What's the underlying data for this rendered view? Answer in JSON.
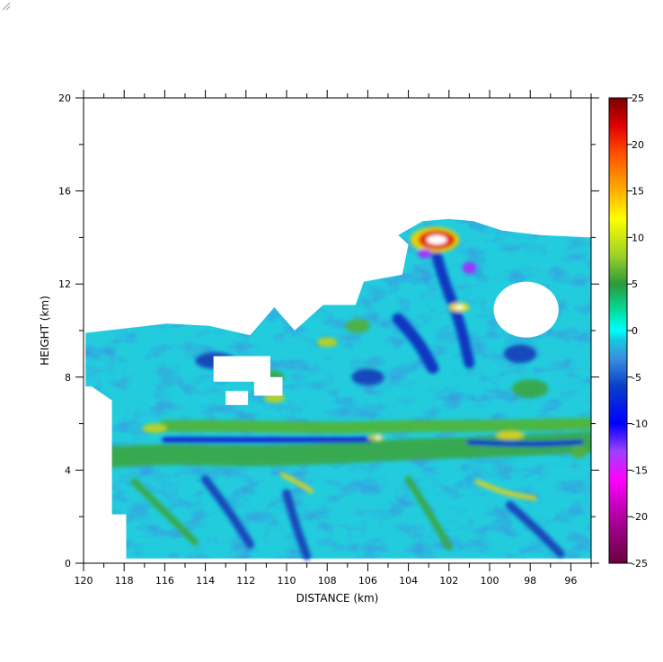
{
  "chart_data": {
    "type": "heatmap",
    "title": "",
    "xlabel": "DISTANCE (km)",
    "ylabel": "HEIGHT (km)",
    "xlim": [
      120,
      95
    ],
    "ylim": [
      0,
      20
    ],
    "x_ticks": [
      120,
      118,
      116,
      114,
      112,
      110,
      108,
      106,
      104,
      102,
      100,
      98,
      96
    ],
    "y_ticks": [
      0,
      4,
      8,
      12,
      16,
      20
    ],
    "colorbar": {
      "range": [
        -25,
        25
      ],
      "ticks": [
        25,
        20,
        15,
        10,
        5,
        0,
        -5,
        -10,
        -15,
        -20,
        -25
      ],
      "stops": [
        {
          "value": -25,
          "color": "#6a0040"
        },
        {
          "value": -20,
          "color": "#b000a0"
        },
        {
          "value": -16,
          "color": "#ff00ff"
        },
        {
          "value": -13,
          "color": "#a040ff"
        },
        {
          "value": -10,
          "color": "#0000ff"
        },
        {
          "value": -6,
          "color": "#0a3ec8"
        },
        {
          "value": -3,
          "color": "#3a8ee0"
        },
        {
          "value": -1,
          "color": "#16c8e0"
        },
        {
          "value": 0,
          "color": "#00ffff"
        },
        {
          "value": 2,
          "color": "#00e0a0"
        },
        {
          "value": 5,
          "color": "#2a9a3a"
        },
        {
          "value": 8,
          "color": "#9ad02a"
        },
        {
          "value": 12,
          "color": "#ffff00"
        },
        {
          "value": 15,
          "color": "#ffb000"
        },
        {
          "value": 19,
          "color": "#ff5000"
        },
        {
          "value": 22,
          "color": "#e00000"
        },
        {
          "value": 25,
          "color": "#7a0000"
        }
      ]
    },
    "field_regions": [
      {
        "name": "main-echo",
        "value": 0,
        "color": "#22ccdd",
        "points": [
          [
            119.9,
            0.8
          ],
          [
            119.9,
            9.9
          ],
          [
            115.9,
            10.3
          ],
          [
            113.8,
            10.2
          ],
          [
            111.8,
            9.8
          ],
          [
            110.6,
            11.0
          ],
          [
            109.6,
            10.0
          ],
          [
            108.2,
            11.1
          ],
          [
            106.6,
            11.1
          ],
          [
            106.2,
            12.1
          ],
          [
            104.3,
            12.4
          ],
          [
            104.0,
            13.7
          ],
          [
            104.5,
            14.1
          ],
          [
            103.3,
            14.7
          ],
          [
            102.0,
            14.8
          ],
          [
            100.8,
            14.7
          ],
          [
            99.4,
            14.3
          ],
          [
            97.5,
            14.1
          ],
          [
            95.0,
            14.0
          ],
          [
            95.0,
            0.2
          ],
          [
            118.3,
            0.2
          ],
          [
            118.4,
            0.9
          ]
        ]
      }
    ],
    "field_features": [
      {
        "kind": "band",
        "value": 6,
        "color": "#3aa84a",
        "width_km": 0.9,
        "points": [
          [
            119.8,
            4.5
          ],
          [
            116,
            4.7
          ],
          [
            112,
            4.6
          ],
          [
            108,
            4.7
          ],
          [
            104,
            4.9
          ],
          [
            100,
            5.0
          ],
          [
            95,
            5.2
          ]
        ]
      },
      {
        "kind": "band",
        "value": 6,
        "color": "#4fb53a",
        "width_km": 0.5,
        "points": [
          [
            116,
            5.9
          ],
          [
            112,
            5.9
          ],
          [
            108,
            5.8
          ],
          [
            104,
            5.9
          ],
          [
            100,
            5.9
          ],
          [
            95,
            6.0
          ]
        ]
      },
      {
        "kind": "band",
        "value": -9,
        "color": "#1020d0",
        "width_km": 0.25,
        "points": [
          [
            116,
            5.3
          ],
          [
            112,
            5.3
          ],
          [
            108.5,
            5.3
          ],
          [
            106,
            5.3
          ],
          [
            105.5,
            5.4
          ]
        ]
      },
      {
        "kind": "band",
        "value": -9,
        "color": "#1020d0",
        "width_km": 0.22,
        "points": [
          [
            101,
            5.2
          ],
          [
            98,
            5.1
          ],
          [
            95.5,
            5.2
          ]
        ]
      },
      {
        "kind": "band",
        "value": 11,
        "color": "#e0d020",
        "width_km": 0.2,
        "points": [
          [
            110.2,
            3.8
          ],
          [
            109.3,
            3.4
          ],
          [
            108.8,
            3.1
          ]
        ]
      },
      {
        "kind": "band",
        "value": 11,
        "color": "#e0d020",
        "width_km": 0.2,
        "points": [
          [
            100.6,
            3.5
          ],
          [
            99.2,
            3.0
          ],
          [
            97.8,
            2.8
          ]
        ]
      },
      {
        "kind": "band",
        "value": -6,
        "color": "#1840b8",
        "width_km": 0.35,
        "points": [
          [
            114,
            3.6
          ],
          [
            112.8,
            2.2
          ],
          [
            111.8,
            0.8
          ]
        ]
      },
      {
        "kind": "band",
        "value": -6,
        "color": "#1840b8",
        "width_km": 0.35,
        "points": [
          [
            110,
            3.0
          ],
          [
            109.5,
            1.5
          ],
          [
            109,
            0.3
          ]
        ]
      },
      {
        "kind": "band",
        "value": -6,
        "color": "#1840b8",
        "width_km": 0.35,
        "points": [
          [
            99,
            2.5
          ],
          [
            97.5,
            1.3
          ],
          [
            96.5,
            0.4
          ]
        ]
      },
      {
        "kind": "band",
        "value": 4,
        "color": "#3aa84a",
        "width_km": 0.3,
        "points": [
          [
            117.5,
            3.5
          ],
          [
            116,
            2.2
          ],
          [
            114.5,
            0.9
          ]
        ]
      },
      {
        "kind": "band",
        "value": 4,
        "color": "#3aa84a",
        "width_km": 0.3,
        "points": [
          [
            104,
            3.6
          ],
          [
            103,
            2.2
          ],
          [
            102,
            0.7
          ]
        ]
      },
      {
        "kind": "band",
        "value": -8,
        "color": "#1030c0",
        "width_km": 0.45,
        "points": [
          [
            102.8,
            13.8
          ],
          [
            102.2,
            12.0
          ],
          [
            101.5,
            10.5
          ],
          [
            101.0,
            8.6
          ]
        ]
      },
      {
        "kind": "band",
        "value": -8,
        "color": "#1030c0",
        "width_km": 0.5,
        "points": [
          [
            104.5,
            10.5
          ],
          [
            103.5,
            9.5
          ],
          [
            102.8,
            8.4
          ]
        ]
      },
      {
        "kind": "blob",
        "value": 14,
        "color": "#f0d000",
        "x": 102.7,
        "y": 13.9,
        "rx_km": 1.2,
        "ry_km": 0.55
      },
      {
        "kind": "blob",
        "value": 20,
        "color": "#e02000",
        "x": 102.6,
        "y": 13.9,
        "rx_km": 0.9,
        "ry_km": 0.4
      },
      {
        "kind": "blob",
        "value": 12,
        "color": "#f0e000",
        "x": 101.5,
        "y": 11.0,
        "rx_km": 0.5,
        "ry_km": 0.2
      },
      {
        "kind": "blob",
        "value": -13,
        "color": "#a030ff",
        "x": 101.0,
        "y": 12.7,
        "rx_km": 0.35,
        "ry_km": 0.25
      },
      {
        "kind": "blob",
        "value": -13,
        "color": "#a030ff",
        "x": 103.2,
        "y": 13.3,
        "rx_km": 0.35,
        "ry_km": 0.2
      },
      {
        "kind": "blob",
        "value": 9,
        "color": "#c0d020",
        "x": 108.0,
        "y": 9.5,
        "rx_km": 0.5,
        "ry_km": 0.2
      },
      {
        "kind": "blob",
        "value": 9,
        "color": "#c0d020",
        "x": 110.6,
        "y": 7.1,
        "rx_km": 0.5,
        "ry_km": 0.2
      },
      {
        "kind": "blob",
        "value": 9,
        "color": "#c0d020",
        "x": 116.5,
        "y": 5.8,
        "rx_km": 0.6,
        "ry_km": 0.2
      },
      {
        "kind": "blob",
        "value": 9,
        "color": "#c0d020",
        "x": 105.6,
        "y": 5.4,
        "rx_km": 0.4,
        "ry_km": 0.15
      },
      {
        "kind": "blob",
        "value": 7,
        "color": "#50b040",
        "x": 106.5,
        "y": 10.2,
        "rx_km": 0.6,
        "ry_km": 0.3
      },
      {
        "kind": "blob",
        "value": -6,
        "color": "#1840b8",
        "x": 113.5,
        "y": 8.7,
        "rx_km": 1.0,
        "ry_km": 0.35
      },
      {
        "kind": "blob",
        "value": -6,
        "color": "#1840b8",
        "x": 106.0,
        "y": 8.0,
        "rx_km": 0.8,
        "ry_km": 0.35
      },
      {
        "kind": "blob",
        "value": -6,
        "color": "#1840b8",
        "x": 98.5,
        "y": 9.0,
        "rx_km": 0.8,
        "ry_km": 0.4
      },
      {
        "kind": "blob",
        "value": 5,
        "color": "#3aa84a",
        "x": 98.0,
        "y": 7.5,
        "rx_km": 0.9,
        "ry_km": 0.4
      },
      {
        "kind": "blob",
        "value": 5,
        "color": "#3aa84a",
        "x": 111.0,
        "y": 8.0,
        "rx_km": 0.9,
        "ry_km": 0.3
      },
      {
        "kind": "blob",
        "value": 10,
        "color": "#d8d020",
        "x": 99.0,
        "y": 5.5,
        "rx_km": 0.7,
        "ry_km": 0.18
      },
      {
        "kind": "blob",
        "value": 7,
        "color": "#50b040",
        "x": 95.6,
        "y": 4.8,
        "rx_km": 0.4,
        "ry_km": 0.3
      }
    ],
    "gaps": [
      {
        "kind": "rect",
        "points": [
          [
            113.6,
            7.8
          ],
          [
            110.8,
            8.9
          ]
        ]
      },
      {
        "kind": "rect",
        "points": [
          [
            111.6,
            7.2
          ],
          [
            110.2,
            8.0
          ]
        ]
      },
      {
        "kind": "rect",
        "points": [
          [
            113.0,
            6.8
          ],
          [
            111.9,
            7.4
          ]
        ]
      },
      {
        "kind": "ellipse",
        "x": 98.2,
        "y": 10.9,
        "rx_km": 1.6,
        "ry_km": 1.2
      },
      {
        "kind": "polygon",
        "points": [
          [
            120.0,
            7.6
          ],
          [
            119.6,
            7.6
          ],
          [
            118.6,
            7.0
          ],
          [
            118.6,
            2.1
          ],
          [
            117.9,
            2.1
          ],
          [
            117.9,
            0.2
          ],
          [
            120.0,
            0.2
          ]
        ]
      }
    ]
  }
}
